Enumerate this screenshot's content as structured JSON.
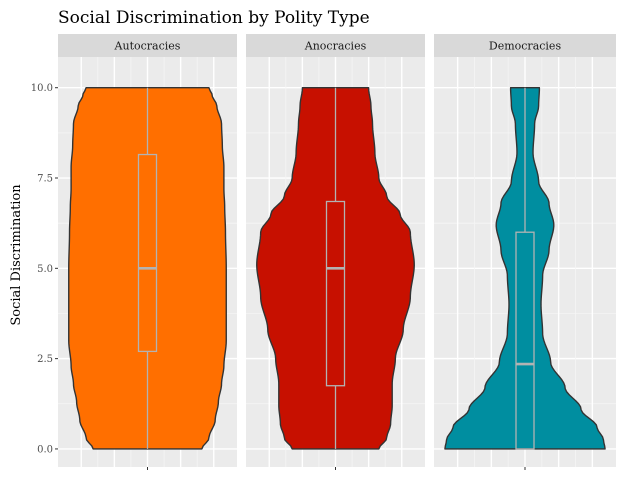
{
  "chart_data": {
    "type": "violin",
    "title": "Social Discrimination by Polity Type",
    "xlabel": "",
    "ylabel": "Social Discrimination",
    "ylim": [
      -0.5,
      10.85
    ],
    "yticks": [
      0.0,
      2.5,
      5.0,
      7.5,
      10.0
    ],
    "ytick_labels": [
      "0.0",
      "2.5",
      "5.0",
      "7.5",
      "10.0"
    ],
    "grid": true,
    "legend": "none",
    "panels": [
      {
        "name": "Autocracies",
        "color": "#FF6F00",
        "box": {
          "q1": 2.7,
          "median": 5.0,
          "q3": 8.15,
          "min": 0.0,
          "max": 10.0
        },
        "density_profile": [
          [
            0.0,
            0.69
          ],
          [
            0.3,
            0.78
          ],
          [
            0.8,
            0.86
          ],
          [
            1.3,
            0.9
          ],
          [
            1.8,
            0.94
          ],
          [
            2.3,
            0.97
          ],
          [
            3.0,
            1.0
          ],
          [
            4.0,
            1.0
          ],
          [
            5.0,
            1.0
          ],
          [
            6.0,
            0.99
          ],
          [
            6.7,
            0.98
          ],
          [
            7.2,
            0.97
          ],
          [
            7.8,
            0.97
          ],
          [
            8.4,
            0.95
          ],
          [
            9.0,
            0.94
          ],
          [
            9.5,
            0.88
          ],
          [
            9.8,
            0.82
          ],
          [
            10.0,
            0.78
          ]
        ]
      },
      {
        "name": "Anocracies",
        "color": "#C71000",
        "box": {
          "q1": 1.75,
          "median": 5.0,
          "q3": 6.85,
          "min": 0.0,
          "max": 10.0
        },
        "density_profile": [
          [
            0.0,
            0.55
          ],
          [
            0.3,
            0.65
          ],
          [
            0.7,
            0.7
          ],
          [
            1.2,
            0.72
          ],
          [
            1.8,
            0.72
          ],
          [
            2.5,
            0.76
          ],
          [
            3.3,
            0.86
          ],
          [
            4.2,
            0.95
          ],
          [
            5.1,
            1.0
          ],
          [
            6.0,
            0.95
          ],
          [
            6.5,
            0.82
          ],
          [
            7.0,
            0.65
          ],
          [
            7.5,
            0.55
          ],
          [
            8.2,
            0.5
          ],
          [
            9.0,
            0.47
          ],
          [
            9.5,
            0.45
          ],
          [
            10.0,
            0.42
          ]
        ]
      },
      {
        "name": "Democracies",
        "color": "#008EA0",
        "box": {
          "q1": 0.0,
          "median": 2.35,
          "q3": 6.0,
          "min": 0.0,
          "max": 10.0
        },
        "density_profile": [
          [
            0.0,
            1.0
          ],
          [
            0.25,
            0.98
          ],
          [
            0.6,
            0.9
          ],
          [
            1.1,
            0.7
          ],
          [
            1.7,
            0.5
          ],
          [
            2.4,
            0.32
          ],
          [
            3.2,
            0.22
          ],
          [
            4.0,
            0.2
          ],
          [
            4.8,
            0.22
          ],
          [
            5.5,
            0.3
          ],
          [
            6.2,
            0.36
          ],
          [
            6.8,
            0.3
          ],
          [
            7.4,
            0.17
          ],
          [
            8.2,
            0.1
          ],
          [
            9.0,
            0.12
          ],
          [
            9.5,
            0.17
          ],
          [
            10.0,
            0.18
          ]
        ]
      }
    ]
  }
}
